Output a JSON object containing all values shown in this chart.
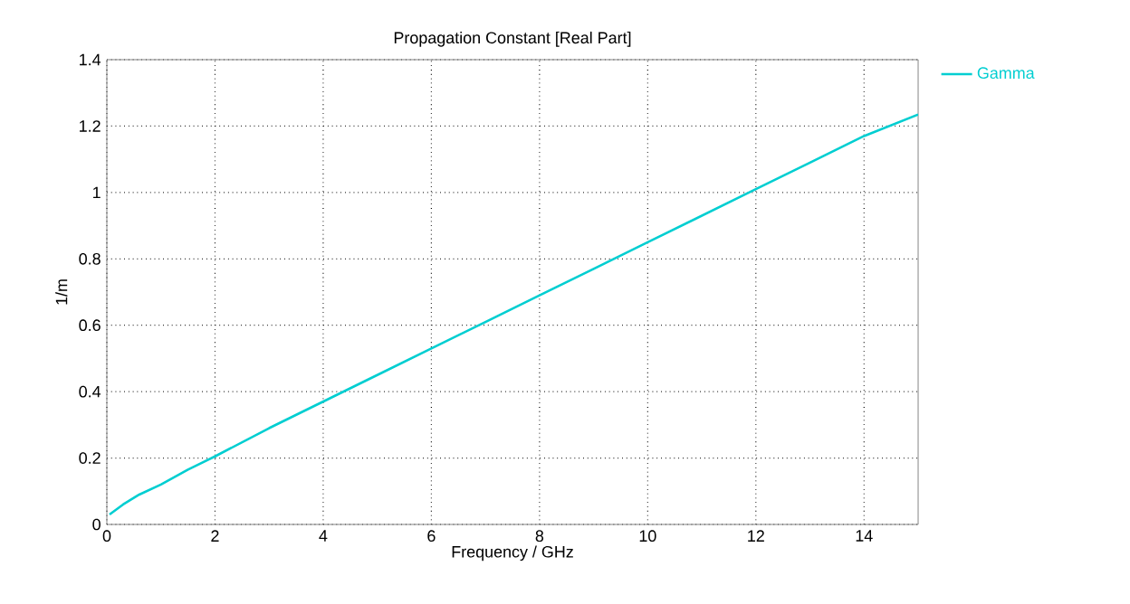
{
  "chart_data": {
    "type": "line",
    "title": "Propagation Constant [Real Part]",
    "xlabel": "Frequency / GHz",
    "ylabel": "1/m",
    "x": [
      0.05,
      0.3,
      0.6,
      1,
      1.5,
      2,
      3,
      4,
      5,
      6,
      7,
      8,
      9,
      10,
      11,
      12,
      13,
      14,
      15
    ],
    "series": [
      {
        "name": "Gamma",
        "color": "#00ced1",
        "values": [
          0.03,
          0.06,
          0.09,
          0.12,
          0.165,
          0.205,
          0.29,
          0.37,
          0.45,
          0.53,
          0.61,
          0.69,
          0.77,
          0.85,
          0.93,
          1.01,
          1.09,
          1.17,
          1.235
        ]
      }
    ],
    "xlim": [
      0,
      15
    ],
    "xticks": [
      0,
      2,
      4,
      6,
      8,
      10,
      12,
      14
    ],
    "ylim": [
      0,
      1.4
    ],
    "yticks": [
      0,
      0.2,
      0.4,
      0.6,
      0.8,
      1,
      1.2,
      1.4
    ],
    "grid": true,
    "legend": "top right",
    "marker": "none",
    "line_style": "solid"
  }
}
